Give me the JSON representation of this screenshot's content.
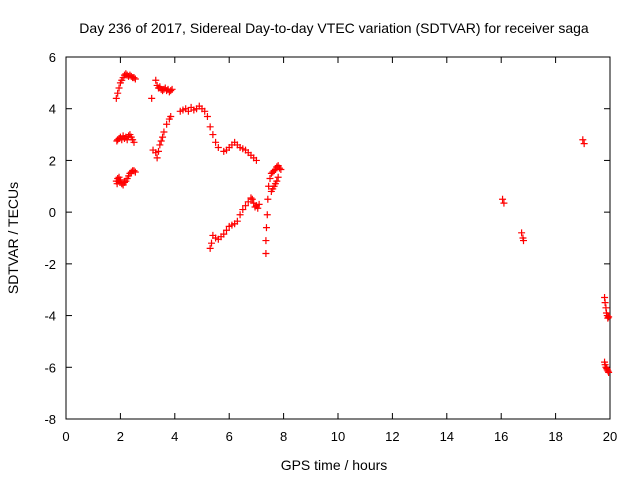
{
  "chart_data": {
    "type": "scatter",
    "title": "Day 236 of 2017, Sidereal Day-to-day VTEC variation (SDTVAR) for receiver saga",
    "xlabel": "GPS time / hours",
    "ylabel": "SDTVAR / TECUs",
    "xlim": [
      0,
      20
    ],
    "ylim": [
      -8,
      6
    ],
    "x_ticks": [
      0,
      2,
      4,
      6,
      8,
      10,
      12,
      14,
      16,
      18,
      20
    ],
    "y_ticks": [
      -8,
      -6,
      -4,
      -2,
      0,
      2,
      4,
      6
    ],
    "grid": false,
    "legend": "none",
    "marker": "plus",
    "color": "#ff0000",
    "series": [
      {
        "x": [
          1.85,
          1.88,
          1.9,
          1.93,
          1.95,
          1.98,
          2.0,
          2.05,
          2.1,
          2.15,
          2.2,
          2.25,
          2.3,
          2.35,
          2.4,
          2.45,
          2.5,
          2.55,
          1.87,
          1.9,
          1.95,
          2.0,
          2.05,
          2.1,
          2.15,
          2.2,
          2.25,
          2.3,
          2.35,
          2.4,
          2.45,
          2.5,
          1.85,
          1.9,
          1.95,
          2.0,
          2.05,
          2.1,
          2.15,
          2.2,
          2.25,
          2.3,
          2.35,
          2.4,
          2.45,
          2.5,
          2.55,
          3.15,
          3.2,
          3.3,
          3.35,
          3.4,
          3.45,
          3.5,
          3.55,
          3.6,
          3.7,
          3.8,
          3.85,
          3.3,
          3.35,
          3.4,
          3.45,
          3.5,
          3.55,
          3.6,
          3.65,
          3.7,
          3.75,
          3.8,
          3.85,
          3.9,
          4.2,
          4.3,
          4.4,
          4.5,
          4.6,
          4.7,
          4.8,
          4.9,
          5.0,
          5.1,
          5.2,
          5.3,
          5.4,
          5.5,
          5.6,
          5.8,
          5.9,
          6.0,
          6.1,
          6.2,
          6.3,
          6.4,
          6.5,
          6.6,
          6.7,
          6.8,
          6.9,
          7.0,
          5.3,
          5.35,
          5.4,
          5.5,
          5.6,
          5.7,
          5.8,
          5.9,
          6.0,
          6.1,
          6.2,
          6.3,
          6.4,
          6.5,
          6.6,
          6.7,
          6.8,
          6.85,
          6.9,
          6.95,
          7.0,
          7.05,
          7.1,
          7.35,
          7.35,
          7.37,
          7.4,
          7.42,
          7.45,
          7.5,
          7.55,
          7.6,
          7.65,
          7.7,
          7.75,
          7.8,
          7.85,
          7.9,
          7.55,
          7.6,
          7.65,
          7.7,
          7.75,
          7.8,
          16.05,
          16.1,
          16.75,
          16.8,
          16.82,
          19.0,
          19.05,
          19.8,
          19.82,
          19.85,
          19.87,
          19.9,
          19.92,
          19.95,
          19.8,
          19.82,
          19.85,
          19.88,
          19.9,
          19.93,
          19.95
        ],
        "y": [
          1.2,
          1.1,
          1.3,
          1.2,
          1.35,
          1.15,
          1.25,
          1.1,
          1.05,
          1.15,
          1.2,
          1.3,
          1.4,
          1.5,
          1.55,
          1.6,
          1.6,
          1.55,
          2.75,
          2.8,
          2.85,
          2.9,
          2.8,
          2.95,
          2.85,
          2.9,
          2.8,
          2.95,
          3.0,
          2.9,
          2.8,
          2.7,
          4.4,
          4.6,
          4.8,
          5.0,
          5.1,
          5.2,
          5.3,
          5.35,
          5.3,
          5.25,
          5.3,
          5.25,
          5.2,
          5.2,
          5.15,
          4.4,
          2.4,
          2.3,
          2.1,
          2.35,
          2.6,
          2.75,
          2.9,
          3.1,
          3.4,
          3.6,
          3.7,
          5.1,
          4.9,
          4.8,
          4.85,
          4.75,
          4.7,
          4.75,
          4.8,
          4.7,
          4.75,
          4.65,
          4.7,
          4.75,
          3.9,
          3.95,
          4.0,
          3.9,
          4.05,
          3.95,
          4.0,
          4.1,
          4.0,
          3.9,
          3.7,
          3.3,
          3.0,
          2.7,
          2.5,
          2.35,
          2.4,
          2.5,
          2.6,
          2.7,
          2.6,
          2.5,
          2.45,
          2.4,
          2.3,
          2.2,
          2.1,
          2.0,
          -1.4,
          -1.2,
          -0.9,
          -1.0,
          -1.05,
          -0.95,
          -0.85,
          -0.7,
          -0.55,
          -0.5,
          -0.45,
          -0.35,
          -0.1,
          0.1,
          0.25,
          0.4,
          0.55,
          0.5,
          0.35,
          0.2,
          0.25,
          0.15,
          0.3,
          -1.6,
          -1.1,
          -0.6,
          -0.1,
          0.5,
          1.0,
          1.3,
          1.5,
          1.55,
          1.6,
          1.65,
          1.75,
          1.8,
          1.7,
          1.65,
          0.8,
          0.9,
          1.0,
          1.1,
          1.2,
          1.35,
          0.5,
          0.35,
          -0.8,
          -1.0,
          -1.1,
          2.8,
          2.65,
          -3.3,
          -3.5,
          -3.7,
          -3.9,
          -4.0,
          -4.1,
          -4.05,
          -5.8,
          -5.9,
          -6.0,
          -6.05,
          -6.1,
          -6.15,
          -6.2
        ]
      }
    ]
  }
}
